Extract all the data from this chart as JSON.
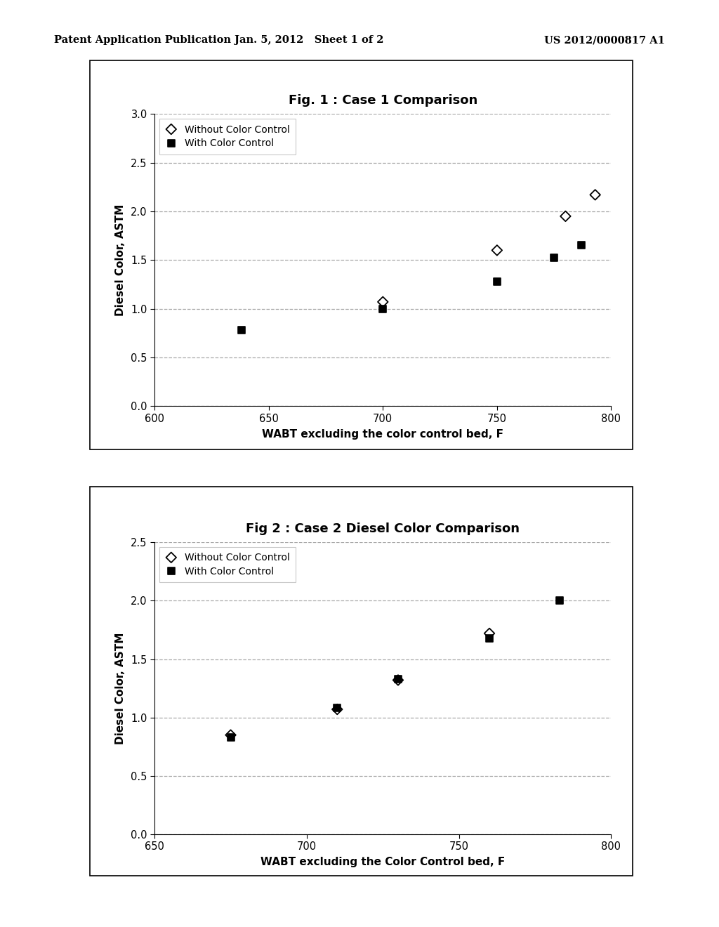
{
  "header_left": "Patent Application Publication",
  "header_center": "Jan. 5, 2012   Sheet 1 of 2",
  "header_right": "US 2012/0000817 A1",
  "fig1": {
    "title": "Fig. 1 : Case 1 Comparison",
    "xlabel": "WABT excluding the color control bed, F",
    "ylabel": "Diesel Color, ASTM",
    "xlim": [
      600,
      800
    ],
    "ylim": [
      0.0,
      3.0
    ],
    "xticks": [
      600,
      650,
      700,
      750,
      800
    ],
    "yticks": [
      0.0,
      0.5,
      1.0,
      1.5,
      2.0,
      2.5,
      3.0
    ],
    "series1_label": "Without Color Control",
    "series2_label": "With Color Control",
    "series1_x": [
      700,
      750,
      780,
      793
    ],
    "series1_y": [
      1.07,
      1.6,
      1.95,
      2.17
    ],
    "series2_x": [
      638,
      700,
      750,
      775,
      787
    ],
    "series2_y": [
      0.78,
      1.0,
      1.28,
      1.52,
      1.65
    ]
  },
  "fig2": {
    "title": "Fig 2 : Case 2 Diesel Color Comparison",
    "xlabel": "WABT excluding the Color Control bed, F",
    "ylabel": "Diesel Color, ASTM",
    "xlim": [
      650,
      800
    ],
    "ylim": [
      0.0,
      2.5
    ],
    "xticks": [
      650,
      700,
      750,
      800
    ],
    "yticks": [
      0.0,
      0.5,
      1.0,
      1.5,
      2.0,
      2.5
    ],
    "series1_label": "Without Color Control",
    "series2_label": "With Color Control",
    "series1_x": [
      675,
      710,
      730,
      760
    ],
    "series1_y": [
      0.85,
      1.07,
      1.32,
      1.72
    ],
    "series2_x": [
      675,
      710,
      730,
      760,
      783
    ],
    "series2_y": [
      0.83,
      1.08,
      1.33,
      1.68,
      2.0
    ]
  },
  "bg_color": "#ffffff",
  "text_color": "#000000",
  "grid_color": "#999999",
  "legend_edge": "#bbbbbb"
}
